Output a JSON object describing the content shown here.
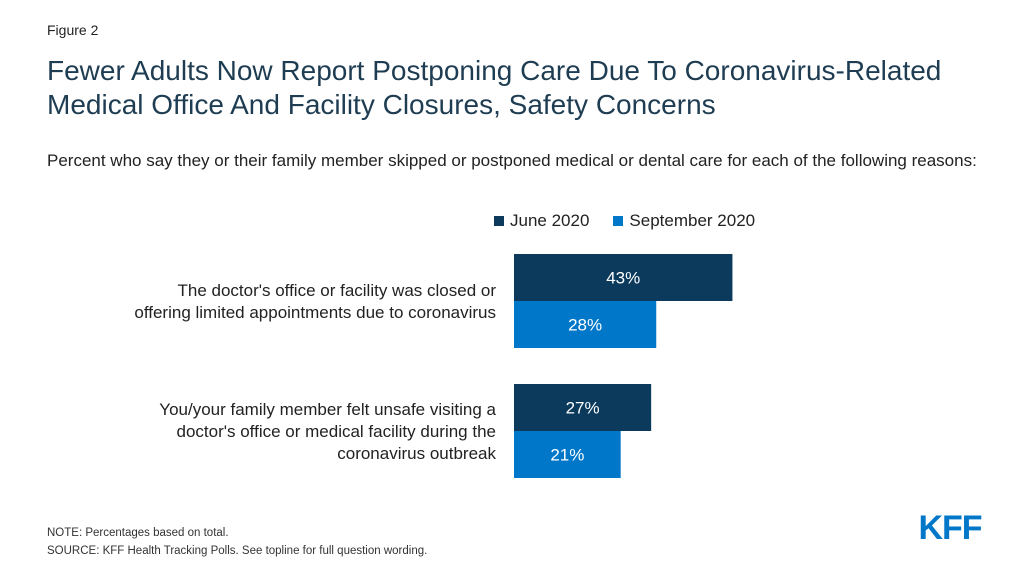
{
  "figure_label": "Figure 2",
  "chart_data": {
    "type": "bar",
    "orientation": "horizontal",
    "title": "Fewer Adults Now Report Postponing Care Due To Coronavirus-Related Medical Office And Facility Closures, Safety Concerns",
    "subtitle": "Percent who say they or their family member skipped or postponed medical or dental care for each of the following reasons:",
    "categories": [
      [
        "The doctor's office or facility was closed or",
        "offering limited appointments due to coronavirus"
      ],
      [
        "You/your family member felt unsafe visiting a",
        "doctor's office or medical facility during the",
        "coronavirus outbreak"
      ]
    ],
    "series": [
      {
        "name": "June 2020",
        "color": "#0b3a5d",
        "values": [
          43,
          27
        ]
      },
      {
        "name": "September 2020",
        "color": "#0077c8",
        "values": [
          28,
          21
        ]
      }
    ],
    "value_suffix": "%",
    "xlim": [
      0,
      100
    ],
    "grid": false,
    "legend_position": "top"
  },
  "notes": {
    "note": "NOTE: Percentages based on total.",
    "source": "SOURCE: KFF Health Tracking Polls. See topline for full question wording."
  },
  "logo": {
    "text": "KFF",
    "color": "#0077c8"
  }
}
